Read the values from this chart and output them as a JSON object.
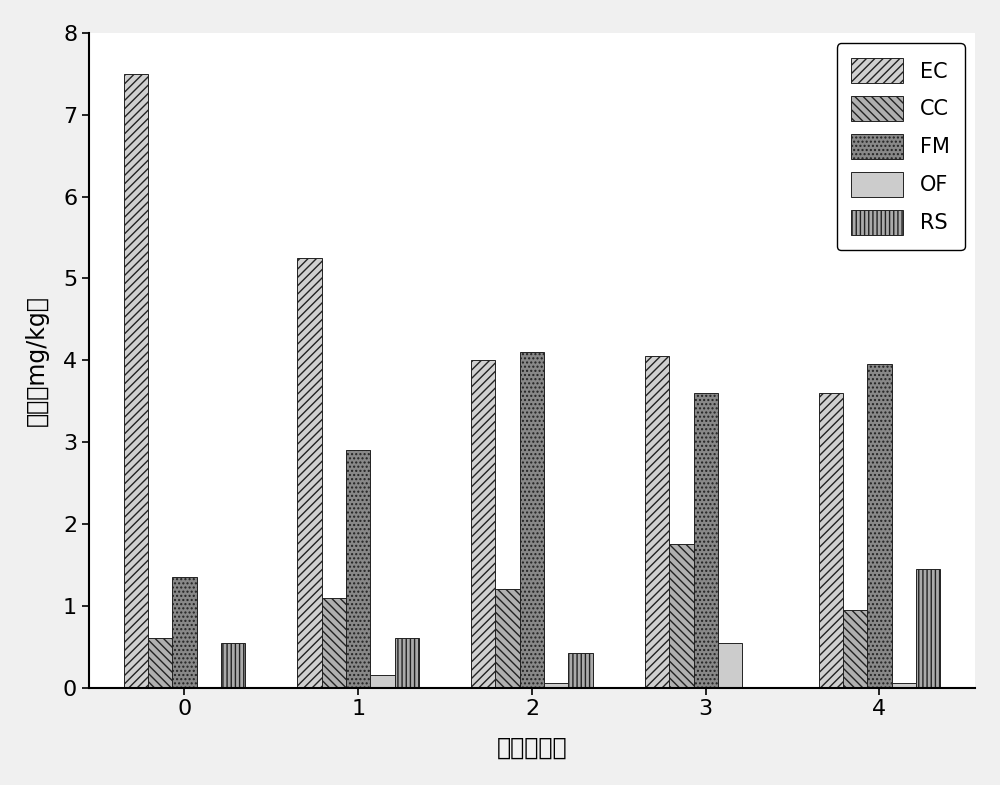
{
  "categories": [
    0,
    1,
    2,
    3,
    4
  ],
  "series": {
    "EC": [
      7.5,
      5.25,
      4.0,
      4.05,
      3.6
    ],
    "CC": [
      0.6,
      1.1,
      1.2,
      1.75,
      0.95
    ],
    "FM": [
      1.35,
      2.9,
      4.1,
      3.6,
      3.95
    ],
    "OF": [
      0.0,
      0.15,
      0.05,
      0.55,
      0.05
    ],
    "RS": [
      0.55,
      0.6,
      0.42,
      0.0,
      1.45
    ]
  },
  "xlabel": "时间（周）",
  "ylabel": "浓度（mg/kg）",
  "ylim": [
    0,
    8
  ],
  "yticks": [
    0,
    1,
    2,
    3,
    4,
    5,
    6,
    7,
    8
  ],
  "xticks": [
    0,
    1,
    2,
    3,
    4
  ],
  "legend_labels": [
    "EC",
    "CC",
    "FM",
    "OF",
    "RS"
  ],
  "bar_width": 0.14,
  "background_color": "#f0f0f0",
  "plot_bg_color": "#ffffff",
  "font_size": 16,
  "legend_font_size": 15,
  "hatches": [
    "////",
    "\\\\\\\\",
    "....",
    "====",
    "||||"
  ],
  "facecolors": [
    "#d0d0d0",
    "#b0b0b0",
    "#888888",
    "#cccccc",
    "#aaaaaa"
  ],
  "edgecolor": "#222222"
}
